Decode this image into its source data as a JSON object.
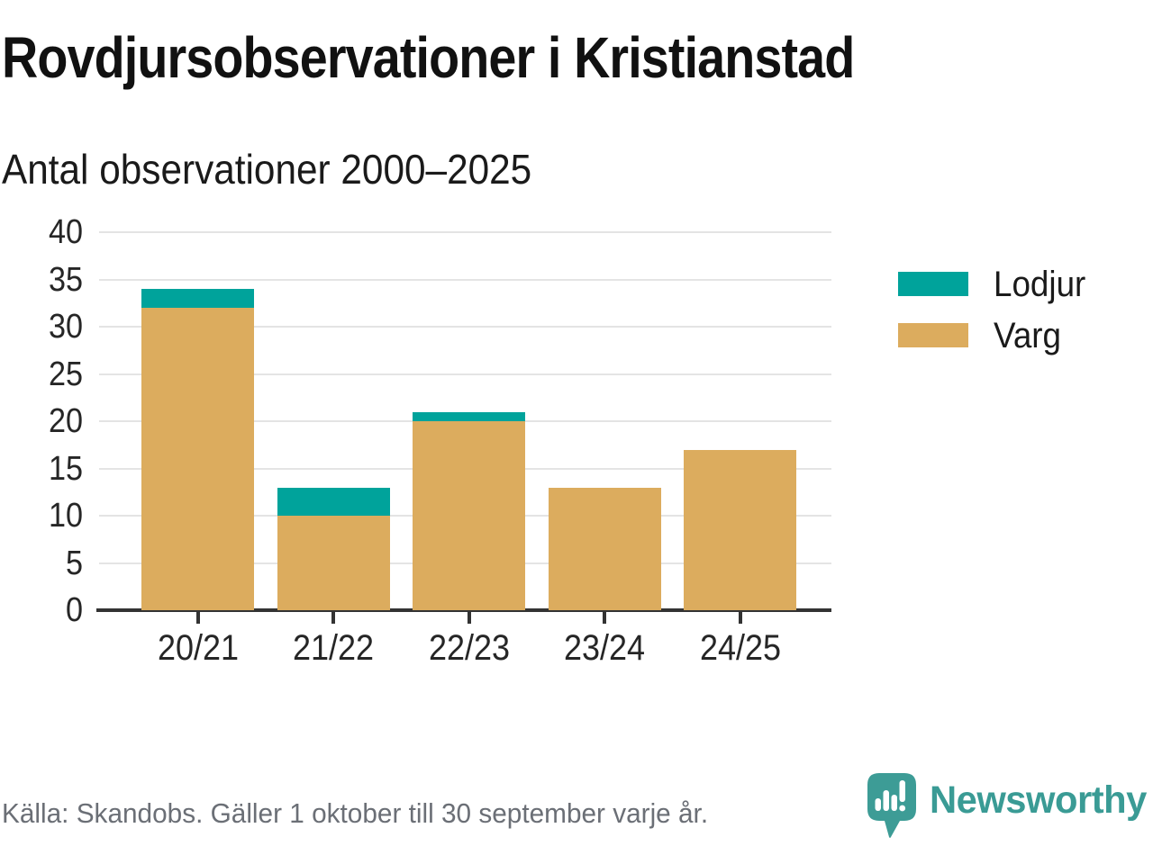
{
  "chart_data": {
    "type": "bar",
    "stacked": true,
    "title": "Rovdjursobservationer i Kristianstad",
    "subtitle": "Antal observationer 2000–2025",
    "categories": [
      "20/21",
      "21/22",
      "22/23",
      "23/24",
      "24/25"
    ],
    "series": [
      {
        "name": "Lodjur",
        "color": "#00a39b",
        "values": [
          2,
          3,
          1,
          0,
          0
        ]
      },
      {
        "name": "Varg",
        "color": "#dcac5e",
        "values": [
          32,
          10,
          20,
          13,
          17
        ]
      }
    ],
    "totals": [
      34,
      13,
      21,
      13,
      17
    ],
    "xlabel": "",
    "ylabel": "",
    "ylim": [
      0,
      40
    ],
    "yticks": [
      0,
      5,
      10,
      15,
      20,
      25,
      30,
      35,
      40
    ],
    "grid": "horizontal",
    "legend_position": "right"
  },
  "colors": {
    "lodjur": "#00a39b",
    "varg": "#dcac5e",
    "brand_teal": "#3a9b95",
    "axis": "#333333",
    "tick_text": "#262626",
    "muted_text": "#6b6f76"
  },
  "icons": {
    "brand": "newsworthy-speech-bubble-bar-chart-icon"
  },
  "footer": {
    "source": "Källa: Skandobs. Gäller 1 oktober till 30 september varje år.",
    "brand": "Newsworthy"
  }
}
